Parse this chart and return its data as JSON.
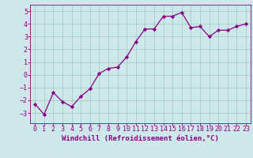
{
  "x_values": [
    0,
    1,
    2,
    3,
    4,
    5,
    6,
    7,
    8,
    9,
    10,
    11,
    12,
    13,
    14,
    15,
    16,
    17,
    18,
    19,
    20,
    21,
    22,
    23
  ],
  "y_values": [
    -2.3,
    -3.1,
    -1.4,
    -2.1,
    -2.5,
    -1.7,
    -1.1,
    0.1,
    0.5,
    0.6,
    1.4,
    2.6,
    3.6,
    3.6,
    4.6,
    4.6,
    4.9,
    3.7,
    3.8,
    3.0,
    3.5,
    3.5,
    3.8,
    4.0
  ],
  "line_color": "#880088",
  "marker": "D",
  "marker_size": 2.2,
  "bg_color": "#cce8e8",
  "grid_color": "#aacccc",
  "xlabel": "Windchill (Refroidissement éolien,°C)",
  "ylim": [
    -3.8,
    5.5
  ],
  "xlim": [
    -0.5,
    23.5
  ],
  "yticks": [
    -3,
    -2,
    -1,
    0,
    1,
    2,
    3,
    4,
    5
  ],
  "xticks": [
    0,
    1,
    2,
    3,
    4,
    5,
    6,
    7,
    8,
    9,
    10,
    11,
    12,
    13,
    14,
    15,
    16,
    17,
    18,
    19,
    20,
    21,
    22,
    23
  ],
  "tick_color": "#880088",
  "label_color": "#880088",
  "xlabel_fontsize": 6.5,
  "tick_fontsize": 6.0,
  "linewidth": 0.9
}
